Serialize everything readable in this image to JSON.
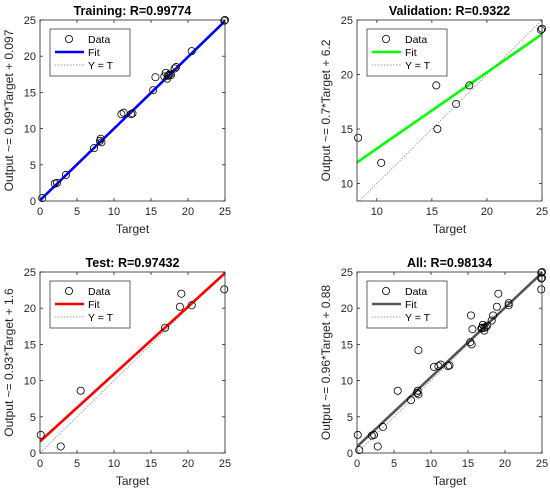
{
  "chart_data": [
    {
      "type": "scatter",
      "title": "Training: R=0.99774",
      "xlabel": "Target",
      "ylabel": "Output ~= 0.99*Target + 0.097",
      "xlim": [
        0,
        25
      ],
      "ylim": [
        0,
        25
      ],
      "xticks": [
        "0",
        "5",
        "10",
        "15",
        "20",
        "25"
      ],
      "yticks": [
        "0",
        "5",
        "10",
        "15",
        "20",
        "25"
      ],
      "fit": {
        "slope": 0.99,
        "intercept": 0.097,
        "color": "#0000ff"
      },
      "legend": [
        "Data",
        "Fit",
        "Y = T"
      ],
      "legend_position": "top-left",
      "points": [
        [
          0.3,
          0.4
        ],
        [
          2.0,
          2.4
        ],
        [
          2.3,
          2.5
        ],
        [
          3.5,
          3.6
        ],
        [
          7.3,
          7.3
        ],
        [
          8.1,
          8.3
        ],
        [
          8.2,
          8.6
        ],
        [
          8.3,
          8.1
        ],
        [
          11.0,
          12.0
        ],
        [
          11.3,
          12.2
        ],
        [
          12.3,
          12.0
        ],
        [
          12.5,
          12.1
        ],
        [
          15.3,
          15.3
        ],
        [
          15.6,
          17.1
        ],
        [
          16.8,
          17.2
        ],
        [
          17.0,
          17.7
        ],
        [
          17.2,
          16.9
        ],
        [
          17.3,
          17.3
        ],
        [
          17.4,
          17.4
        ],
        [
          17.6,
          17.6
        ],
        [
          17.7,
          17.4
        ],
        [
          18.2,
          18.3
        ],
        [
          18.4,
          18.5
        ],
        [
          20.5,
          20.7
        ],
        [
          24.9,
          24.9
        ],
        [
          25.0,
          25.0
        ]
      ]
    },
    {
      "type": "scatter",
      "title": "Validation: R=0.9322",
      "xlabel": "Target",
      "ylabel": "Output ~= 0.7*Target + 6.2",
      "xlim": [
        8.2,
        25
      ],
      "ylim": [
        8.4,
        25
      ],
      "xticks": [
        "10",
        "15",
        "20",
        "25"
      ],
      "yticks": [
        "10",
        "15",
        "20",
        "25"
      ],
      "fit": {
        "slope": 0.7,
        "intercept": 6.2,
        "color": "#00ff00"
      },
      "legend": [
        "Data",
        "Fit",
        "Y = T"
      ],
      "legend_position": "top-left",
      "points": [
        [
          8.3,
          14.2
        ],
        [
          10.4,
          11.9
        ],
        [
          15.4,
          19.0
        ],
        [
          15.5,
          15.0
        ],
        [
          17.2,
          17.3
        ],
        [
          18.4,
          19.0
        ],
        [
          24.9,
          24.1
        ],
        [
          25.0,
          24.2
        ]
      ]
    },
    {
      "type": "scatter",
      "title": "Test: R=0.97432",
      "xlabel": "Target",
      "ylabel": "Output ~= 0.93*Target + 1.6",
      "xlim": [
        0,
        25
      ],
      "ylim": [
        0,
        25
      ],
      "xticks": [
        "0",
        "5",
        "10",
        "15",
        "20",
        "25"
      ],
      "yticks": [
        "0",
        "5",
        "10",
        "15",
        "20",
        "25"
      ],
      "fit": {
        "slope": 0.93,
        "intercept": 1.6,
        "color": "#ff0000"
      },
      "legend": [
        "Data",
        "Fit",
        "Y = T"
      ],
      "legend_position": "top-left",
      "points": [
        [
          0.1,
          2.5
        ],
        [
          2.8,
          0.9
        ],
        [
          5.5,
          8.6
        ],
        [
          16.9,
          17.3
        ],
        [
          18.9,
          20.2
        ],
        [
          19.1,
          22.0
        ],
        [
          20.5,
          20.4
        ],
        [
          24.9,
          22.6
        ]
      ]
    },
    {
      "type": "scatter",
      "title": "All: R=0.98134",
      "xlabel": "Target",
      "ylabel": "Output ~= 0.96*Target + 0.88",
      "xlim": [
        0,
        25
      ],
      "ylim": [
        0,
        25
      ],
      "xticks": [
        "0",
        "5",
        "10",
        "15",
        "20",
        "25"
      ],
      "yticks": [
        "0",
        "5",
        "10",
        "15",
        "20",
        "25"
      ],
      "fit": {
        "slope": 0.96,
        "intercept": 0.88,
        "color": "#555555"
      },
      "legend": [
        "Data",
        "Fit",
        "Y = T"
      ],
      "legend_position": "top-left",
      "points": [
        [
          0.1,
          2.5
        ],
        [
          0.3,
          0.4
        ],
        [
          2.0,
          2.4
        ],
        [
          2.3,
          2.5
        ],
        [
          2.8,
          0.9
        ],
        [
          3.5,
          3.6
        ],
        [
          5.5,
          8.6
        ],
        [
          7.3,
          7.3
        ],
        [
          8.1,
          8.3
        ],
        [
          8.2,
          8.6
        ],
        [
          8.3,
          8.1
        ],
        [
          8.3,
          14.2
        ],
        [
          10.4,
          11.9
        ],
        [
          11.0,
          12.0
        ],
        [
          11.3,
          12.2
        ],
        [
          12.3,
          12.0
        ],
        [
          12.5,
          12.1
        ],
        [
          15.3,
          15.3
        ],
        [
          15.4,
          19.0
        ],
        [
          15.5,
          15.0
        ],
        [
          15.6,
          17.1
        ],
        [
          16.8,
          17.2
        ],
        [
          16.9,
          17.3
        ],
        [
          17.0,
          17.7
        ],
        [
          17.2,
          16.9
        ],
        [
          17.2,
          17.3
        ],
        [
          17.4,
          17.4
        ],
        [
          17.6,
          17.6
        ],
        [
          18.2,
          18.3
        ],
        [
          18.4,
          19.0
        ],
        [
          18.9,
          20.2
        ],
        [
          19.1,
          22.0
        ],
        [
          20.5,
          20.7
        ],
        [
          20.5,
          20.4
        ],
        [
          24.9,
          22.6
        ],
        [
          24.9,
          24.1
        ],
        [
          25.0,
          24.2
        ],
        [
          25.0,
          25.0
        ],
        [
          24.9,
          24.9
        ]
      ]
    }
  ]
}
